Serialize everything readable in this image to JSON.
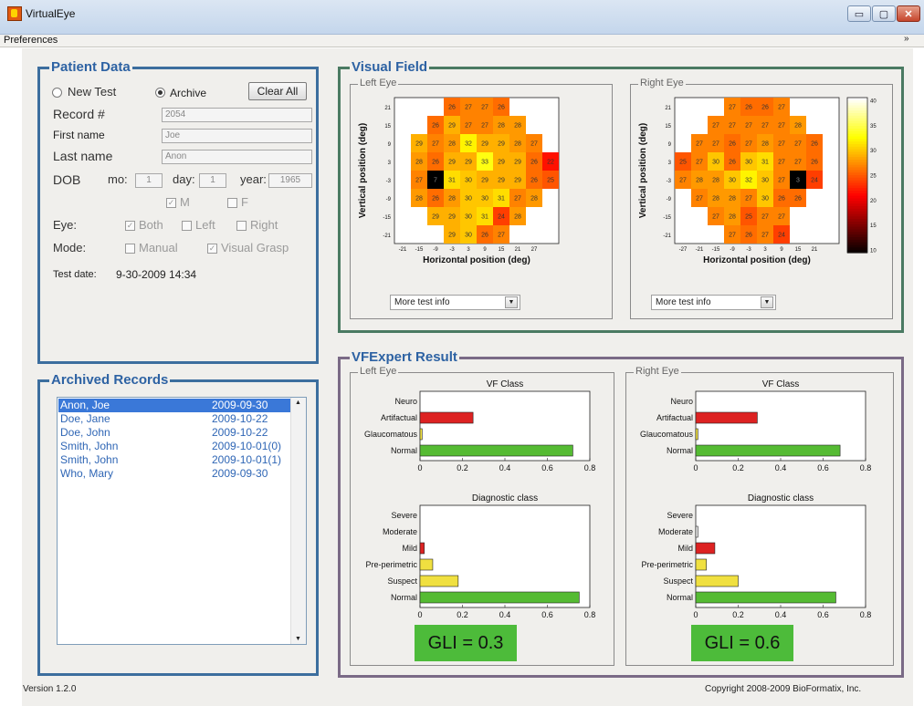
{
  "window": {
    "title": "VirtualEye",
    "menu": [
      "Preferences"
    ],
    "menu_arrow": "»",
    "min_icon": "▭",
    "max_icon": "▢",
    "close_icon": "✕"
  },
  "patient": {
    "title": "Patient Data",
    "mode_new": "New Test",
    "mode_archive": "Archive",
    "selected_mode": "archive",
    "clear_all": "Clear All",
    "record_label": "Record #",
    "record_value": "2054",
    "first_label": "First name",
    "first_value": "Joe",
    "last_label": "Last name",
    "last_value": "Anon",
    "dob_label": "DOB",
    "mo_label": "mo:",
    "mo_value": "1",
    "day_label": "day:",
    "day_value": "1",
    "year_label": "year:",
    "year_value": "1965",
    "gender_m": "M",
    "gender_f": "F",
    "gender_m_checked": true,
    "gender_f_checked": false,
    "eye_label": "Eye:",
    "eye_both": "Both",
    "eye_left": "Left",
    "eye_right": "Right",
    "eye_both_checked": true,
    "mode_label": "Mode:",
    "mode_manual": "Manual",
    "mode_vg": "Visual Grasp",
    "mode_vg_checked": true,
    "test_date_label": "Test date:",
    "test_date_value": "9-30-2009 14:34"
  },
  "archived": {
    "title": "Archived Records",
    "records": [
      {
        "name": "Anon, Joe",
        "date": "2009-09-30",
        "selected": true
      },
      {
        "name": "Doe, Jane",
        "date": "2009-10-22"
      },
      {
        "name": "Doe, John",
        "date": "2009-10-22"
      },
      {
        "name": "Smith, John",
        "date": "2009-10-01(0)"
      },
      {
        "name": "Smith, John",
        "date": "2009-10-01(1)"
      },
      {
        "name": "Who, Mary",
        "date": "2009-09-30"
      }
    ]
  },
  "visual_field": {
    "title": "Visual Field",
    "left_title": "Left Eye",
    "right_title": "Right Eye",
    "xlabel": "Horizontal position (deg)",
    "ylabel": "Vertical position (deg)",
    "left_xticks": [
      "-21",
      "-15",
      "-9",
      "-3",
      "3",
      "9",
      "15",
      "21",
      "27"
    ],
    "right_xticks": [
      "-27",
      "-21",
      "-15",
      "-9",
      "-3",
      "3",
      "9",
      "15",
      "21"
    ],
    "yticks": [
      "21",
      "15",
      "9",
      "3",
      "-3",
      "-9",
      "-15",
      "-21"
    ],
    "colorbar_ticks": [
      "40",
      "35",
      "30",
      "25",
      "20",
      "15",
      "10"
    ],
    "colorbar_range": [
      10,
      40
    ],
    "popup_label": "More test info",
    "left_grid": [
      [
        null,
        null,
        null,
        26,
        27,
        27,
        26,
        null,
        null,
        null
      ],
      [
        null,
        null,
        26,
        29,
        27,
        27,
        28,
        28,
        null,
        null
      ],
      [
        null,
        29,
        27,
        28,
        32,
        29,
        29,
        28,
        27,
        null
      ],
      [
        null,
        28,
        26,
        29,
        29,
        33,
        29,
        29,
        26,
        22
      ],
      [
        null,
        27,
        7,
        31,
        30,
        29,
        29,
        29,
        26,
        25
      ],
      [
        null,
        28,
        26,
        28,
        30,
        30,
        31,
        27,
        28,
        null
      ],
      [
        null,
        null,
        29,
        29,
        30,
        31,
        24,
        28,
        null,
        null
      ],
      [
        null,
        null,
        null,
        29,
        30,
        26,
        27,
        null,
        null,
        null
      ]
    ],
    "right_grid": [
      [
        null,
        null,
        null,
        27,
        26,
        26,
        27,
        null,
        null,
        null
      ],
      [
        null,
        null,
        27,
        27,
        27,
        27,
        27,
        28,
        null,
        null
      ],
      [
        null,
        27,
        27,
        26,
        27,
        28,
        27,
        27,
        26,
        null
      ],
      [
        25,
        27,
        30,
        26,
        30,
        31,
        27,
        27,
        26,
        null
      ],
      [
        27,
        28,
        28,
        30,
        32,
        30,
        27,
        3,
        24,
        null
      ],
      [
        null,
        27,
        28,
        28,
        27,
        30,
        26,
        26,
        null,
        null
      ],
      [
        null,
        null,
        27,
        28,
        25,
        27,
        27,
        null,
        null,
        null
      ],
      [
        null,
        null,
        null,
        27,
        26,
        27,
        24,
        null,
        null,
        null
      ]
    ]
  },
  "vfexpert": {
    "title": "VFExpert Result",
    "left_title": "Left Eye",
    "right_title": "Right Eye"
  },
  "chart_data": [
    {
      "type": "bar",
      "title": "VF Class",
      "eye": "Left Eye",
      "categories": [
        "Neuro",
        "Artifactual",
        "Glaucomatous",
        "Normal"
      ],
      "values": [
        0,
        0.25,
        0.01,
        0.72
      ],
      "colors": [
        "#e8e8e8",
        "#dd2222",
        "#f0e040",
        "#55bb33"
      ],
      "xlim": [
        0,
        0.8
      ],
      "xticks": [
        "0",
        "0.2",
        "0.4",
        "0.6",
        "0.8"
      ]
    },
    {
      "type": "bar",
      "title": "VF Class",
      "eye": "Right Eye",
      "categories": [
        "Neuro",
        "Artifactual",
        "Glaucomatous",
        "Normal"
      ],
      "values": [
        0,
        0.29,
        0.01,
        0.68
      ],
      "colors": [
        "#e8e8e8",
        "#dd2222",
        "#f0e040",
        "#55bb33"
      ],
      "xlim": [
        0,
        0.8
      ],
      "xticks": [
        "0",
        "0.2",
        "0.4",
        "0.6",
        "0.8"
      ]
    },
    {
      "type": "bar",
      "title": "Diagnostic class",
      "eye": "Left Eye",
      "categories": [
        "Severe",
        "Moderate",
        "Mild",
        "Pre-perimetric",
        "Suspect",
        "Normal"
      ],
      "values": [
        0,
        0,
        0.02,
        0.06,
        0.18,
        0.75
      ],
      "colors": [
        "#e8e8e8",
        "#e8e8e8",
        "#dd2222",
        "#f0e040",
        "#f0e040",
        "#55bb33"
      ],
      "xlim": [
        0,
        0.8
      ],
      "xticks": [
        "0",
        "0.2",
        "0.4",
        "0.6",
        "0.8"
      ]
    },
    {
      "type": "bar",
      "title": "Diagnostic class",
      "eye": "Right Eye",
      "categories": [
        "Severe",
        "Moderate",
        "Mild",
        "Pre-perimetric",
        "Suspect",
        "Normal"
      ],
      "values": [
        0,
        0.01,
        0.09,
        0.05,
        0.2,
        0.66
      ],
      "colors": [
        "#e8e8e8",
        "#e8e8e8",
        "#dd2222",
        "#f0e040",
        "#f0e040",
        "#55bb33"
      ],
      "xlim": [
        0,
        0.8
      ],
      "xticks": [
        "0",
        "0.2",
        "0.4",
        "0.6",
        "0.8"
      ]
    }
  ],
  "gli": {
    "left": "GLI = 0.3",
    "right": "GLI = 0.6"
  },
  "status": {
    "version": "Version 1.2.0",
    "copyright": "Copyright 2008-2009 BioFormatix, Inc."
  }
}
